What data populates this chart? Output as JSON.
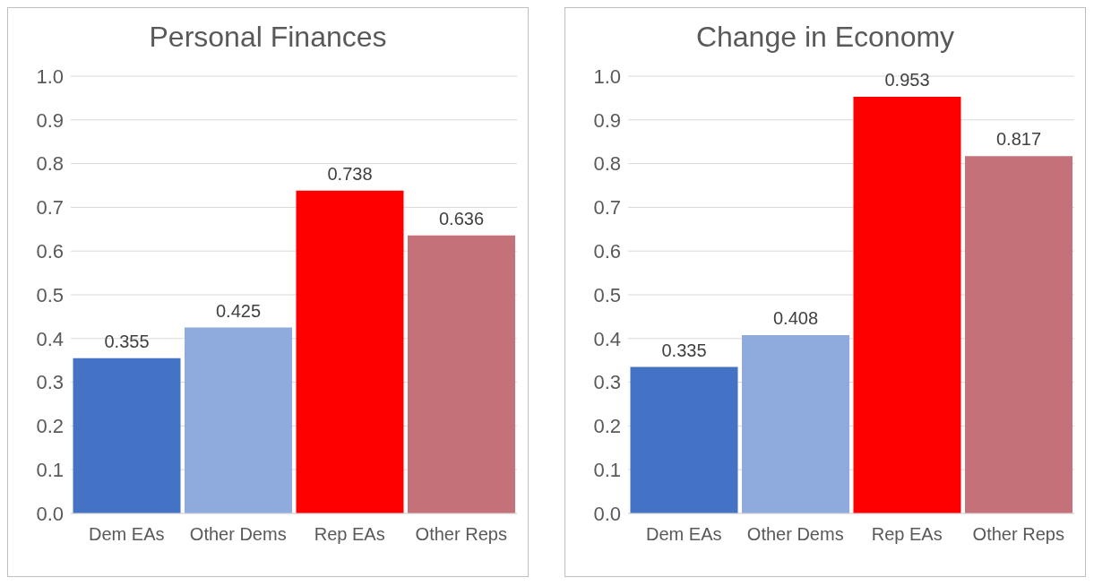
{
  "chart_data": [
    {
      "type": "bar",
      "title": "Personal Finances",
      "categories": [
        "Dem EAs",
        "Other Dems",
        "Rep EAs",
        "Other Reps"
      ],
      "values": [
        0.355,
        0.425,
        0.738,
        0.636
      ],
      "colors": [
        "#4472c4",
        "#8faadc",
        "#ff0000",
        "#c5717a"
      ],
      "ylim": [
        0,
        1
      ],
      "yticks": [
        {
          "value": 0,
          "label": "0.0"
        },
        {
          "value": 0.1,
          "label": "0.1"
        },
        {
          "value": 0.2,
          "label": "0.2"
        },
        {
          "value": 0.3,
          "label": "0.3"
        },
        {
          "value": 0.4,
          "label": "0.4"
        },
        {
          "value": 0.5,
          "label": "0.5"
        },
        {
          "value": 0.6,
          "label": "0.6"
        },
        {
          "value": 0.7,
          "label": "0.7"
        },
        {
          "value": 0.8,
          "label": "0.8"
        },
        {
          "value": 0.9,
          "label": "0.9"
        },
        {
          "value": 1,
          "label": "1.0"
        }
      ],
      "grid": "y",
      "data_labels": true
    },
    {
      "type": "bar",
      "title": "Change in Economy",
      "categories": [
        "Dem EAs",
        "Other Dems",
        "Rep EAs",
        "Other Reps"
      ],
      "values": [
        0.335,
        0.408,
        0.953,
        0.817
      ],
      "colors": [
        "#4472c4",
        "#8faadc",
        "#ff0000",
        "#c5717a"
      ],
      "ylim": [
        0,
        1
      ],
      "yticks": [
        {
          "value": 0,
          "label": "0.0"
        },
        {
          "value": 0.1,
          "label": "0.1"
        },
        {
          "value": 0.2,
          "label": "0.2"
        },
        {
          "value": 0.3,
          "label": "0.3"
        },
        {
          "value": 0.4,
          "label": "0.4"
        },
        {
          "value": 0.5,
          "label": "0.5"
        },
        {
          "value": 0.6,
          "label": "0.6"
        },
        {
          "value": 0.7,
          "label": "0.7"
        },
        {
          "value": 0.8,
          "label": "0.8"
        },
        {
          "value": 0.9,
          "label": "0.9"
        },
        {
          "value": 1,
          "label": "1.0"
        }
      ],
      "grid": "y",
      "data_labels": true
    }
  ]
}
